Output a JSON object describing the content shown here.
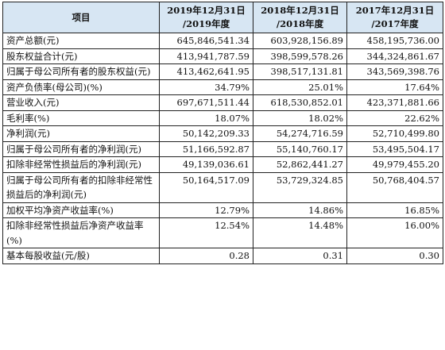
{
  "header": {
    "item": "项目",
    "col1": "2019年12月31日\n/2019年度",
    "col2": "2018年12月31日\n/2018年度",
    "col3": "2017年12月31日\n/2017年度"
  },
  "rows": [
    {
      "label": "资产总额(元)",
      "v2019": "645,846,541.34",
      "v2018": "603,928,156.89",
      "v2017": "458,195,736.00"
    },
    {
      "label": "股东权益合计(元)",
      "v2019": "413,941,787.59",
      "v2018": "398,599,578.26",
      "v2017": "344,324,861.67"
    },
    {
      "label": "归属于母公司所有者的股东权益(元)",
      "v2019": "413,462,641.95",
      "v2018": "398,517,131.81",
      "v2017": "343,569,398.76"
    },
    {
      "label": "资产负债率(母公司)(%)",
      "v2019": "34.79%",
      "v2018": "25.01%",
      "v2017": "17.64%"
    },
    {
      "label": "营业收入(元)",
      "v2019": "697,671,511.44",
      "v2018": "618,530,852.01",
      "v2017": "423,371,881.66"
    },
    {
      "label": "毛利率(%)",
      "v2019": "18.07%",
      "v2018": "18.02%",
      "v2017": "22.62%"
    },
    {
      "label": "净利润(元)",
      "v2019": "50,142,209.33",
      "v2018": "54,274,716.59",
      "v2017": "52,710,499.80"
    },
    {
      "label": "归属于母公司所有者的净利润(元)",
      "v2019": "51,166,592.87",
      "v2018": "55,140,760.17",
      "v2017": "53,495,504.17"
    },
    {
      "label": "扣除非经常性损益后的净利润(元)",
      "v2019": "49,139,036.61",
      "v2018": "52,862,441.27",
      "v2017": "49,979,455.20"
    },
    {
      "label": "归属于母公司所有者的扣除非经常性损益后的净利润(元)",
      "v2019": "50,164,517.09",
      "v2018": "53,729,324.85",
      "v2017": "50,768,404.57"
    },
    {
      "label": "加权平均净资产收益率(%)",
      "v2019": "12.79%",
      "v2018": "14.86%",
      "v2017": "16.85%"
    },
    {
      "label": "扣除非经常性损益后净资产收益率(%)",
      "v2019": "12.54%",
      "v2018": "14.48%",
      "v2017": "16.00%"
    },
    {
      "label": "基本每股收益(元/股)",
      "v2019": "0.28",
      "v2018": "0.31",
      "v2017": "0.30"
    }
  ]
}
